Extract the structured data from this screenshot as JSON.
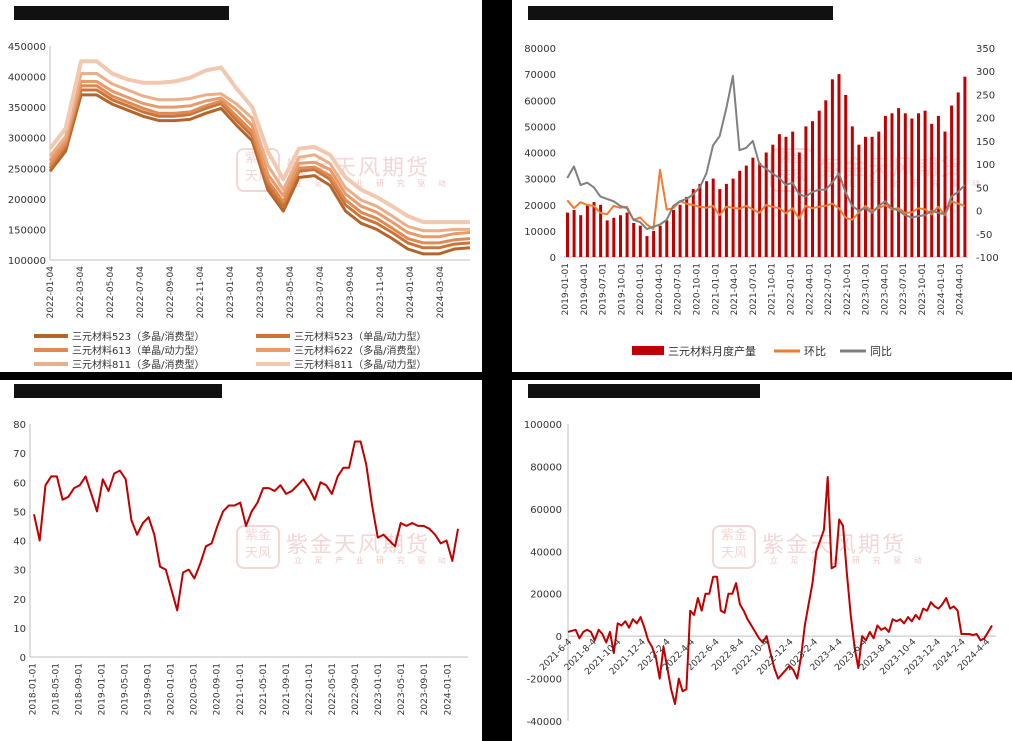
{
  "watermark": {
    "name": "紫金天风期货",
    "slogan": "立 足 产 业   研 究 驱 动",
    "seal": "紫金\n天风"
  },
  "charts": [
    {
      "type": "line",
      "title": "",
      "ylim": [
        100000,
        450000
      ],
      "yticks": [
        100000,
        150000,
        200000,
        250000,
        300000,
        350000,
        400000,
        450000
      ],
      "xticks": [
        "2022-01-04",
        "2022-03-04",
        "2022-05-04",
        "2022-07-04",
        "2022-09-04",
        "2022-11-04",
        "2023-01-04",
        "2023-03-04",
        "2023-05-04",
        "2023-07-04",
        "2023-09-04",
        "2023-11-04",
        "2024-01-04",
        "2024-03-04"
      ],
      "x": [
        "2022-01",
        "2022-02",
        "2022-03",
        "2022-04",
        "2022-05",
        "2022-06",
        "2022-07",
        "2022-08",
        "2022-09",
        "2022-10",
        "2022-11",
        "2022-12",
        "2023-01",
        "2023-02",
        "2023-03",
        "2023-04",
        "2023-05",
        "2023-06",
        "2023-07",
        "2023-08",
        "2023-09",
        "2023-10",
        "2023-11",
        "2023-12",
        "2024-01",
        "2024-02",
        "2024-03",
        "2024-04"
      ],
      "series": [
        {
          "name": "三元材料523（多晶/消费型）",
          "color": "#b5652a",
          "width": 3,
          "values": [
            245000,
            278000,
            370000,
            370000,
            355000,
            345000,
            335000,
            328000,
            328000,
            330000,
            340000,
            348000,
            320000,
            295000,
            215000,
            180000,
            235000,
            238000,
            222000,
            180000,
            160000,
            150000,
            135000,
            118000,
            110000,
            110000,
            118000,
            120000
          ]
        },
        {
          "name": "三元材料523（单晶/动力型）",
          "color": "#cc7438",
          "width": 3,
          "values": [
            250000,
            285000,
            378000,
            378000,
            362000,
            352000,
            342000,
            335000,
            335000,
            338000,
            348000,
            356000,
            328000,
            303000,
            223000,
            188000,
            245000,
            248000,
            232000,
            190000,
            170000,
            160000,
            145000,
            128000,
            120000,
            120000,
            126000,
            128000
          ]
        },
        {
          "name": "三元材料613（单晶/动力型）",
          "color": "#de8a52",
          "width": 3,
          "values": [
            255000,
            290000,
            385000,
            385000,
            368000,
            358000,
            348000,
            340000,
            340000,
            342000,
            352000,
            360000,
            335000,
            310000,
            230000,
            195000,
            250000,
            252000,
            238000,
            198000,
            178000,
            168000,
            152000,
            135000,
            128000,
            128000,
            133000,
            135000
          ]
        },
        {
          "name": "三元材料622（多晶/消费型）",
          "color": "#e89a6a",
          "width": 3,
          "values": [
            262000,
            296000,
            392000,
            392000,
            376000,
            366000,
            356000,
            350000,
            350000,
            352000,
            360000,
            365000,
            345000,
            320000,
            240000,
            205000,
            258000,
            260000,
            248000,
            208000,
            188000,
            178000,
            162000,
            145000,
            138000,
            138000,
            143000,
            145000
          ]
        },
        {
          "name": "三元材料811（多晶/消费型）",
          "color": "#eaae88",
          "width": 3,
          "values": [
            270000,
            302000,
            405000,
            405000,
            388000,
            378000,
            368000,
            362000,
            362000,
            364000,
            370000,
            372000,
            355000,
            332000,
            255000,
            215000,
            268000,
            272000,
            258000,
            218000,
            198000,
            188000,
            172000,
            155000,
            148000,
            148000,
            150000,
            150000
          ]
        },
        {
          "name": "三元材料811（多晶/动力型）",
          "color": "#f2c8b0",
          "width": 4,
          "values": [
            282000,
            315000,
            425000,
            425000,
            405000,
            395000,
            390000,
            390000,
            392000,
            398000,
            410000,
            415000,
            380000,
            350000,
            278000,
            232000,
            282000,
            285000,
            272000,
            235000,
            215000,
            203000,
            188000,
            172000,
            162000,
            162000,
            162000,
            162000
          ]
        }
      ]
    },
    {
      "type": "bar+line",
      "title": "",
      "ylim": [
        0,
        80000
      ],
      "yticks": [
        0,
        10000,
        20000,
        30000,
        40000,
        50000,
        60000,
        70000,
        80000
      ],
      "y2lim": [
        -100,
        350
      ],
      "y2ticks": [
        -100,
        -50,
        0,
        50,
        100,
        150,
        200,
        250,
        300,
        350
      ],
      "xticks": [
        "2019-01-01",
        "2019-04-01",
        "2019-07-01",
        "2019-10-01",
        "2020-01-01",
        "2020-04-01",
        "2020-07-01",
        "2020-10-01",
        "2021-01-01",
        "2021-04-01",
        "2021-07-01",
        "2021-10-01",
        "2022-01-01",
        "2022-04-01",
        "2022-07-01",
        "2022-10-01",
        "2023-01-01",
        "2023-04-01",
        "2023-07-01",
        "2023-10-01",
        "2024-01-01",
        "2024-04-01"
      ],
      "series": [
        {
          "name": "三元材料月度产量",
          "kind": "bar",
          "axis": "left",
          "color": "#c00000",
          "values": [
            17000,
            18000,
            16000,
            20000,
            21000,
            20000,
            14000,
            15000,
            16000,
            17000,
            13000,
            12000,
            8000,
            10000,
            12000,
            14000,
            18000,
            20000,
            23000,
            26000,
            28000,
            29000,
            30000,
            26000,
            28000,
            30000,
            33000,
            35000,
            38000,
            36000,
            40000,
            43000,
            47000,
            46000,
            48000,
            40000,
            50000,
            52000,
            56000,
            60000,
            68000,
            70000,
            62000,
            50000,
            43000,
            46000,
            46000,
            48000,
            54000,
            55000,
            57000,
            55000,
            53000,
            55000,
            56000,
            51000,
            54000,
            48000,
            58000,
            63000,
            69000
          ]
        },
        {
          "name": "环比",
          "kind": "line",
          "axis": "right",
          "color": "#ed7d31",
          "values": [
            22,
            5,
            18,
            12,
            10,
            -5,
            -8,
            10,
            6,
            8,
            -20,
            -15,
            -30,
            -40,
            88,
            2,
            5,
            20,
            15,
            12,
            8,
            6,
            10,
            -10,
            8,
            6,
            4,
            10,
            3,
            -5,
            12,
            8,
            5,
            -6,
            5,
            -17,
            10,
            5,
            8,
            10,
            15,
            5,
            -15,
            -20,
            -5,
            10,
            0,
            5,
            12,
            3,
            5,
            -5,
            -4,
            5,
            3,
            -8,
            8,
            -10,
            20,
            15,
            10
          ]
        },
        {
          "name": "同比",
          "kind": "line",
          "axis": "right",
          "color": "#808080",
          "values": [
            70,
            95,
            55,
            60,
            50,
            30,
            25,
            20,
            10,
            5,
            -20,
            -25,
            -40,
            -35,
            -30,
            -20,
            10,
            20,
            25,
            35,
            50,
            80,
            140,
            160,
            220,
            290,
            130,
            135,
            150,
            100,
            90,
            80,
            70,
            55,
            60,
            35,
            30,
            40,
            45,
            45,
            60,
            80,
            40,
            10,
            0,
            5,
            -5,
            10,
            20,
            5,
            0,
            -10,
            -15,
            -12,
            -10,
            0,
            -5,
            -8,
            30,
            40,
            55
          ]
        }
      ],
      "legend": [
        "三元材料月度产量",
        "环比",
        "同比"
      ]
    },
    {
      "type": "line",
      "title": "",
      "ylim": [
        0,
        80
      ],
      "yticks": [
        0,
        10,
        20,
        30,
        40,
        50,
        60,
        70,
        80
      ],
      "xticks": [
        "2018-01-01",
        "2018-05-01",
        "2018-09-01",
        "2019-01-01",
        "2019-05-01",
        "2019-09-01",
        "2020-01-01",
        "2020-05-01",
        "2020-09-01",
        "2021-01-01",
        "2021-05-01",
        "2021-09-01",
        "2022-01-01",
        "2022-05-01",
        "2022-09-01",
        "2023-01-01",
        "2023-05-01",
        "2023-09-01",
        "2024-01-01"
      ],
      "series": [
        {
          "name": "",
          "color": "#c00000",
          "width": 2,
          "values": [
            49,
            40,
            59,
            62,
            62,
            54,
            55,
            58,
            59,
            62,
            56,
            50,
            61,
            57,
            63,
            64,
            61,
            47,
            42,
            46,
            48,
            42,
            31,
            30,
            23,
            16,
            29,
            30,
            27,
            32,
            38,
            39,
            45,
            50,
            52,
            52,
            53,
            45,
            50,
            53,
            58,
            58,
            57,
            59,
            56,
            57,
            59,
            61,
            58,
            54,
            60,
            59,
            56,
            62,
            65,
            65,
            74,
            74,
            66,
            52,
            41,
            42,
            40,
            38,
            46,
            45,
            46,
            45,
            45,
            44,
            42,
            39,
            40,
            33,
            44
          ]
        }
      ]
    },
    {
      "type": "line",
      "title": "",
      "ylim": [
        -40000,
        100000
      ],
      "yticks": [
        -40000,
        -20000,
        0,
        20000,
        40000,
        60000,
        80000,
        100000
      ],
      "xticks": [
        "2021-6-4",
        "2021-8-4",
        "2021-10-4",
        "2021-12-4",
        "2022-2-4",
        "2022-4-4",
        "2022-6-4",
        "2022-8-4",
        "2022-10-4",
        "2022-12-4",
        "2023-2-4",
        "2023-4-4",
        "2023-6-4",
        "2023-8-4",
        "2023-10-4",
        "2023-12-4",
        "2024-2-4",
        "2024-4-4"
      ],
      "series": [
        {
          "name": "",
          "color": "#c00000",
          "width": 2,
          "values": [
            2000,
            2500,
            3000,
            -1000,
            2000,
            3000,
            2000,
            -2000,
            3000,
            1000,
            -3000,
            2000,
            -8000,
            6000,
            5000,
            7000,
            4000,
            8000,
            6000,
            9000,
            4000,
            -2000,
            -5000,
            -10000,
            -20000,
            -5000,
            -15000,
            -25000,
            -32000,
            -20000,
            -26000,
            -25000,
            12000,
            10000,
            18000,
            12000,
            20000,
            20000,
            28000,
            28000,
            12000,
            11000,
            20000,
            20000,
            25000,
            15000,
            12000,
            8000,
            5000,
            2000,
            -1000,
            -3000,
            0,
            -8000,
            -15000,
            -20000,
            -18000,
            -16000,
            -14000,
            -16000,
            -20000,
            -10000,
            5000,
            15000,
            25000,
            40000,
            45000,
            50000,
            75000,
            32000,
            33000,
            55000,
            52000,
            30000,
            10000,
            -5000,
            -15000,
            0,
            -2000,
            2000,
            -1000,
            5000,
            3000,
            4000,
            2000,
            8000,
            7000,
            8000,
            6000,
            9000,
            7000,
            10000,
            8000,
            13000,
            12000,
            16000,
            14000,
            13000,
            15000,
            18000,
            13000,
            14000,
            12000,
            1000,
            1000,
            1000,
            500,
            1000,
            -2000,
            -1000,
            2000,
            5000
          ]
        }
      ]
    }
  ],
  "legend1": [
    "三元材料523（多晶/消费型）",
    "三元材料523（单晶/动力型）",
    "三元材料613（单晶/动力型）",
    "三元材料622（多晶/消费型）",
    "三元材料811（多晶/消费型）",
    "三元材料811（多晶/动力型）"
  ]
}
